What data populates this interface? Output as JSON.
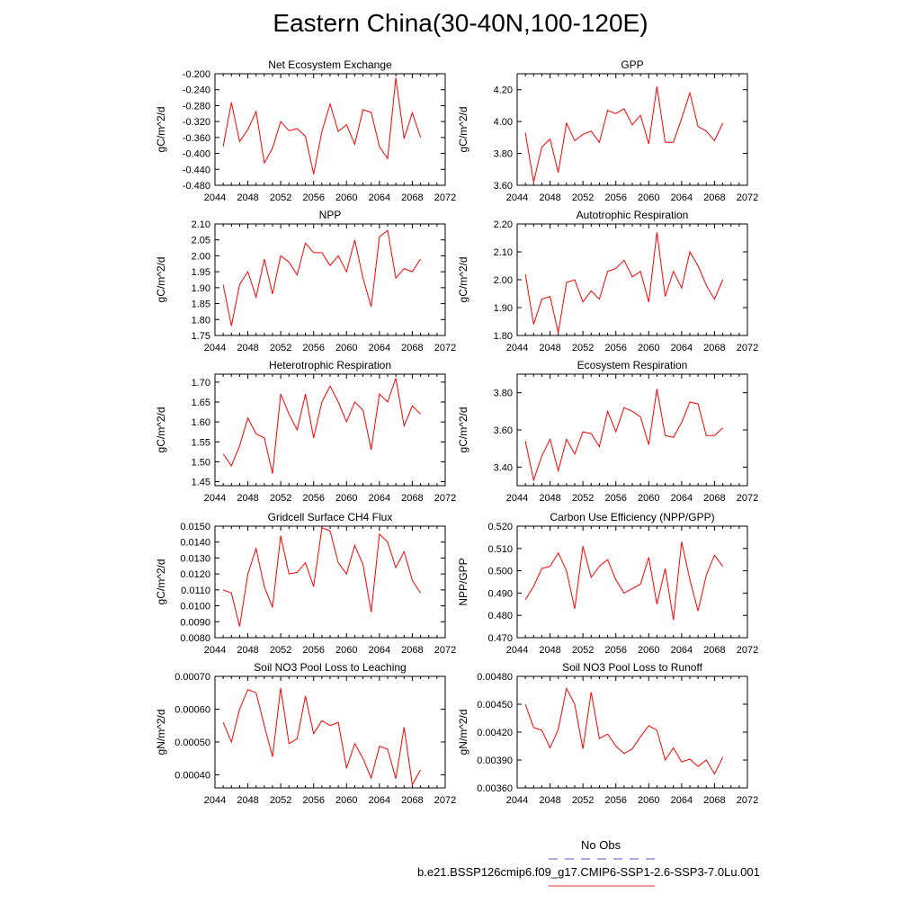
{
  "title": "Eastern China(30-40N,100-120E)",
  "legend": [
    {
      "label": "No Obs",
      "color": "#5555cc",
      "style": "dashed"
    },
    {
      "label": "b.e21.BSSP126cmip6.f09_g17.CMIP6-SSP1-2.6-SSP3-7.0Lu.001",
      "color": "#e03030",
      "style": "solid"
    }
  ],
  "chart_data": [
    {
      "type": "line",
      "title": "Net Ecosystem Exchange",
      "ylabel": "gC/m^2/d",
      "xlim": [
        2044,
        2072
      ],
      "ylim": [
        -0.48,
        -0.2
      ],
      "xticks": [
        "2044",
        "2048",
        "2052",
        "2056",
        "2060",
        "2064",
        "2068",
        "2072"
      ],
      "yticks": [
        "-0.200",
        "-0.240",
        "-0.280",
        "-0.320",
        "-0.360",
        "-0.400",
        "-0.440",
        "-0.480"
      ],
      "series": [
        {
          "color": "#ff0000",
          "x": [
            2045,
            2046,
            2047,
            2048,
            2049,
            2050,
            2051,
            2052,
            2053,
            2054,
            2055,
            2056,
            2057,
            2058,
            2059,
            2060,
            2061,
            2062,
            2063,
            2064,
            2065,
            2066,
            2067,
            2068,
            2069
          ],
          "y": [
            -0.383,
            -0.272,
            -0.37,
            -0.34,
            -0.295,
            -0.424,
            -0.387,
            -0.32,
            -0.343,
            -0.338,
            -0.357,
            -0.452,
            -0.345,
            -0.276,
            -0.345,
            -0.328,
            -0.377,
            -0.29,
            -0.297,
            -0.383,
            -0.413,
            -0.21,
            -0.363,
            -0.298,
            -0.36
          ]
        }
      ]
    },
    {
      "type": "line",
      "title": "GPP",
      "ylabel": "gC/m^2/d",
      "xlim": [
        2044,
        2072
      ],
      "ylim": [
        3.6,
        4.3
      ],
      "xticks": [
        "2044",
        "2048",
        "2052",
        "2056",
        "2060",
        "2064",
        "2068",
        "2072"
      ],
      "yticks": [
        "3.60",
        "3.80",
        "4.00",
        "4.20"
      ],
      "series": [
        {
          "color": "#ff0000",
          "x": [
            2045,
            2046,
            2047,
            2048,
            2049,
            2050,
            2051,
            2052,
            2053,
            2054,
            2055,
            2056,
            2057,
            2058,
            2059,
            2060,
            2061,
            2062,
            2063,
            2064,
            2065,
            2066,
            2067,
            2068,
            2069
          ],
          "y": [
            3.93,
            3.62,
            3.84,
            3.89,
            3.68,
            3.99,
            3.88,
            3.92,
            3.94,
            3.87,
            4.07,
            4.05,
            4.08,
            3.98,
            4.04,
            3.86,
            4.22,
            3.87,
            3.87,
            4.02,
            4.18,
            3.97,
            3.94,
            3.88,
            3.99
          ]
        }
      ]
    },
    {
      "type": "line",
      "title": "NPP",
      "ylabel": "gC/m^2/d",
      "xlim": [
        2044,
        2072
      ],
      "ylim": [
        1.75,
        2.1
      ],
      "xticks": [
        "2044",
        "2048",
        "2052",
        "2056",
        "2060",
        "2064",
        "2068",
        "2072"
      ],
      "yticks": [
        "1.75",
        "1.80",
        "1.85",
        "1.90",
        "1.95",
        "2.00",
        "2.05",
        "2.10"
      ],
      "series": [
        {
          "color": "#ff0000",
          "x": [
            2045,
            2046,
            2047,
            2048,
            2049,
            2050,
            2051,
            2052,
            2053,
            2054,
            2055,
            2056,
            2057,
            2058,
            2059,
            2060,
            2061,
            2062,
            2063,
            2064,
            2065,
            2066,
            2067,
            2068,
            2069
          ],
          "y": [
            1.91,
            1.78,
            1.91,
            1.95,
            1.87,
            1.99,
            1.88,
            2.0,
            1.98,
            1.94,
            2.04,
            2.01,
            2.01,
            1.97,
            2.0,
            1.95,
            2.05,
            1.93,
            1.84,
            2.06,
            2.08,
            1.93,
            1.96,
            1.95,
            1.99
          ]
        }
      ]
    },
    {
      "type": "line",
      "title": "Autotrophic Respiration",
      "ylabel": "gC/m^2/d",
      "xlim": [
        2044,
        2072
      ],
      "ylim": [
        1.8,
        2.2
      ],
      "xticks": [
        "2044",
        "2048",
        "2052",
        "2056",
        "2060",
        "2064",
        "2068",
        "2072"
      ],
      "yticks": [
        "1.80",
        "1.90",
        "2.00",
        "2.10",
        "2.20"
      ],
      "series": [
        {
          "color": "#ff0000",
          "x": [
            2045,
            2046,
            2047,
            2048,
            2049,
            2050,
            2051,
            2052,
            2053,
            2054,
            2055,
            2056,
            2057,
            2058,
            2059,
            2060,
            2061,
            2062,
            2063,
            2064,
            2065,
            2066,
            2067,
            2068,
            2069
          ],
          "y": [
            2.02,
            1.84,
            1.93,
            1.94,
            1.81,
            1.99,
            2.0,
            1.92,
            1.96,
            1.93,
            2.03,
            2.04,
            2.07,
            2.01,
            2.03,
            1.92,
            2.17,
            1.94,
            2.03,
            1.97,
            2.1,
            2.05,
            1.98,
            1.93,
            2.0
          ]
        }
      ]
    },
    {
      "type": "line",
      "title": "Heterotrophic Respiration",
      "ylabel": "gC/m^2/d",
      "xlim": [
        2044,
        2072
      ],
      "ylim": [
        1.44,
        1.72
      ],
      "xticks": [
        "2044",
        "2048",
        "2052",
        "2056",
        "2060",
        "2064",
        "2068",
        "2072"
      ],
      "yticks": [
        "1.45",
        "1.50",
        "1.55",
        "1.60",
        "1.65",
        "1.70"
      ],
      "series": [
        {
          "color": "#ff0000",
          "x": [
            2045,
            2046,
            2047,
            2048,
            2049,
            2050,
            2051,
            2052,
            2053,
            2054,
            2055,
            2056,
            2057,
            2058,
            2059,
            2060,
            2061,
            2062,
            2063,
            2064,
            2065,
            2066,
            2067,
            2068,
            2069
          ],
          "y": [
            1.52,
            1.49,
            1.54,
            1.61,
            1.57,
            1.56,
            1.47,
            1.67,
            1.62,
            1.58,
            1.67,
            1.56,
            1.65,
            1.69,
            1.65,
            1.6,
            1.65,
            1.63,
            1.53,
            1.67,
            1.65,
            1.71,
            1.59,
            1.64,
            1.62
          ]
        }
      ]
    },
    {
      "type": "line",
      "title": "Ecosystem Respiration",
      "ylabel": "gC/m^2/d",
      "xlim": [
        2044,
        2072
      ],
      "ylim": [
        3.3,
        3.9
      ],
      "xticks": [
        "2044",
        "2048",
        "2052",
        "2056",
        "2060",
        "2064",
        "2068",
        "2072"
      ],
      "yticks": [
        "3.40",
        "3.60",
        "3.80"
      ],
      "series": [
        {
          "color": "#ff0000",
          "x": [
            2045,
            2046,
            2047,
            2048,
            2049,
            2050,
            2051,
            2052,
            2053,
            2054,
            2055,
            2056,
            2057,
            2058,
            2059,
            2060,
            2061,
            2062,
            2063,
            2064,
            2065,
            2066,
            2067,
            2068,
            2069
          ],
          "y": [
            3.54,
            3.33,
            3.46,
            3.55,
            3.38,
            3.55,
            3.47,
            3.59,
            3.58,
            3.51,
            3.7,
            3.59,
            3.72,
            3.7,
            3.67,
            3.52,
            3.82,
            3.57,
            3.56,
            3.64,
            3.75,
            3.74,
            3.57,
            3.57,
            3.61
          ]
        }
      ]
    },
    {
      "type": "line",
      "title": "Gridcell Surface CH4 Flux",
      "ylabel": "gC/m^2/d",
      "xlim": [
        2044,
        2072
      ],
      "ylim": [
        0.008,
        0.015
      ],
      "xticks": [
        "2044",
        "2048",
        "2052",
        "2056",
        "2060",
        "2064",
        "2068",
        "2072"
      ],
      "yticks": [
        "0.0080",
        "0.0090",
        "0.0100",
        "0.0110",
        "0.0120",
        "0.0130",
        "0.0140",
        "0.0150"
      ],
      "series": [
        {
          "color": "#ff0000",
          "x": [
            2045,
            2046,
            2047,
            2048,
            2049,
            2050,
            2051,
            2052,
            2053,
            2054,
            2055,
            2056,
            2057,
            2058,
            2059,
            2060,
            2061,
            2062,
            2063,
            2064,
            2065,
            2066,
            2067,
            2068,
            2069
          ],
          "y": [
            0.011,
            0.0108,
            0.0087,
            0.012,
            0.0136,
            0.0112,
            0.0099,
            0.0144,
            0.012,
            0.0121,
            0.0127,
            0.0112,
            0.0149,
            0.0147,
            0.0127,
            0.012,
            0.0138,
            0.0126,
            0.0096,
            0.0145,
            0.014,
            0.0124,
            0.0134,
            0.0116,
            0.0108
          ]
        }
      ]
    },
    {
      "type": "line",
      "title": "Carbon Use Efficiency (NPP/GPP)",
      "ylabel": "NPP/GPP",
      "xlim": [
        2044,
        2072
      ],
      "ylim": [
        0.47,
        0.52
      ],
      "xticks": [
        "2044",
        "2048",
        "2052",
        "2056",
        "2060",
        "2064",
        "2068",
        "2072"
      ],
      "yticks": [
        "0.470",
        "0.480",
        "0.490",
        "0.500",
        "0.510",
        "0.520"
      ],
      "series": [
        {
          "color": "#ff0000",
          "x": [
            2045,
            2046,
            2047,
            2048,
            2049,
            2050,
            2051,
            2052,
            2053,
            2054,
            2055,
            2056,
            2057,
            2058,
            2059,
            2060,
            2061,
            2062,
            2063,
            2064,
            2065,
            2066,
            2067,
            2068,
            2069
          ],
          "y": [
            0.487,
            0.493,
            0.501,
            0.502,
            0.508,
            0.5,
            0.483,
            0.511,
            0.497,
            0.502,
            0.505,
            0.496,
            0.49,
            0.492,
            0.494,
            0.506,
            0.485,
            0.501,
            0.478,
            0.513,
            0.496,
            0.482,
            0.498,
            0.507,
            0.502
          ]
        }
      ]
    },
    {
      "type": "line",
      "title": "Soil NO3 Pool Loss to Leaching",
      "ylabel": "gN/m^2/d",
      "xlim": [
        2044,
        2072
      ],
      "ylim": [
        0.00036,
        0.0007
      ],
      "xticks": [
        "2044",
        "2048",
        "2052",
        "2056",
        "2060",
        "2064",
        "2068",
        "2072"
      ],
      "yticks": [
        "0.00040",
        "0.00050",
        "0.00060",
        "0.00070"
      ],
      "series": [
        {
          "color": "#ff0000",
          "x": [
            2045,
            2046,
            2047,
            2048,
            2049,
            2050,
            2051,
            2052,
            2053,
            2054,
            2055,
            2056,
            2057,
            2058,
            2059,
            2060,
            2061,
            2062,
            2063,
            2064,
            2065,
            2066,
            2067,
            2068,
            2069
          ],
          "y": [
            0.00056,
            0.0005,
            0.0006,
            0.00066,
            0.00065,
            0.00055,
            0.000455,
            0.000665,
            0.000495,
            0.00051,
            0.00064,
            0.000525,
            0.000565,
            0.00055,
            0.00056,
            0.00042,
            0.000495,
            0.00045,
            0.00039,
            0.000487,
            0.000478,
            0.000388,
            0.000545,
            0.00037,
            0.000415
          ]
        }
      ]
    },
    {
      "type": "line",
      "title": "Soil NO3 Pool Loss to Runoff",
      "ylabel": "gN/m^2/d",
      "xlim": [
        2044,
        2072
      ],
      "ylim": [
        0.0036,
        0.0048
      ],
      "xticks": [
        "2044",
        "2048",
        "2052",
        "2056",
        "2060",
        "2064",
        "2068",
        "2072"
      ],
      "yticks": [
        "0.00360",
        "0.00390",
        "0.00420",
        "0.00450",
        "0.00480"
      ],
      "series": [
        {
          "color": "#ff0000",
          "x": [
            2045,
            2046,
            2047,
            2048,
            2049,
            2050,
            2051,
            2052,
            2053,
            2054,
            2055,
            2056,
            2057,
            2058,
            2059,
            2060,
            2061,
            2062,
            2063,
            2064,
            2065,
            2066,
            2067,
            2068,
            2069
          ],
          "y": [
            0.0045,
            0.00425,
            0.00422,
            0.00403,
            0.00423,
            0.00467,
            0.0045,
            0.00402,
            0.00463,
            0.00413,
            0.00418,
            0.00405,
            0.00397,
            0.00402,
            0.00415,
            0.00427,
            0.00422,
            0.0039,
            0.00403,
            0.00388,
            0.00391,
            0.00383,
            0.0039,
            0.00375,
            0.00393
          ]
        }
      ]
    }
  ]
}
